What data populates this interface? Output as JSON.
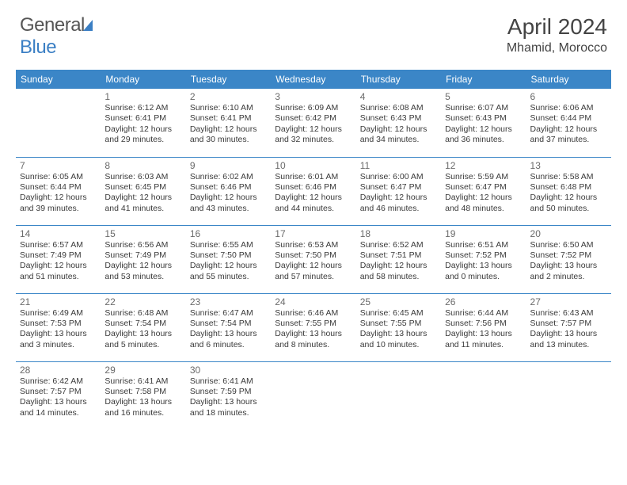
{
  "brand": {
    "part1": "General",
    "part2": "Blue"
  },
  "title": "April 2024",
  "location": "Mhamid, Morocco",
  "colors": {
    "header_bg": "#3b86c7",
    "header_text": "#ffffff",
    "body_text": "#3a3a3a",
    "daynum_text": "#6a6a6a",
    "border": "#3b86c7",
    "logo_gray": "#555555",
    "logo_blue": "#3b7fc4"
  },
  "day_headers": [
    "Sunday",
    "Monday",
    "Tuesday",
    "Wednesday",
    "Thursday",
    "Friday",
    "Saturday"
  ],
  "weeks": [
    [
      null,
      {
        "n": "1",
        "sunrise": "6:12 AM",
        "sunset": "6:41 PM",
        "daylight": "12 hours and 29 minutes."
      },
      {
        "n": "2",
        "sunrise": "6:10 AM",
        "sunset": "6:41 PM",
        "daylight": "12 hours and 30 minutes."
      },
      {
        "n": "3",
        "sunrise": "6:09 AM",
        "sunset": "6:42 PM",
        "daylight": "12 hours and 32 minutes."
      },
      {
        "n": "4",
        "sunrise": "6:08 AM",
        "sunset": "6:43 PM",
        "daylight": "12 hours and 34 minutes."
      },
      {
        "n": "5",
        "sunrise": "6:07 AM",
        "sunset": "6:43 PM",
        "daylight": "12 hours and 36 minutes."
      },
      {
        "n": "6",
        "sunrise": "6:06 AM",
        "sunset": "6:44 PM",
        "daylight": "12 hours and 37 minutes."
      }
    ],
    [
      {
        "n": "7",
        "sunrise": "6:05 AM",
        "sunset": "6:44 PM",
        "daylight": "12 hours and 39 minutes."
      },
      {
        "n": "8",
        "sunrise": "6:03 AM",
        "sunset": "6:45 PM",
        "daylight": "12 hours and 41 minutes."
      },
      {
        "n": "9",
        "sunrise": "6:02 AM",
        "sunset": "6:46 PM",
        "daylight": "12 hours and 43 minutes."
      },
      {
        "n": "10",
        "sunrise": "6:01 AM",
        "sunset": "6:46 PM",
        "daylight": "12 hours and 44 minutes."
      },
      {
        "n": "11",
        "sunrise": "6:00 AM",
        "sunset": "6:47 PM",
        "daylight": "12 hours and 46 minutes."
      },
      {
        "n": "12",
        "sunrise": "5:59 AM",
        "sunset": "6:47 PM",
        "daylight": "12 hours and 48 minutes."
      },
      {
        "n": "13",
        "sunrise": "5:58 AM",
        "sunset": "6:48 PM",
        "daylight": "12 hours and 50 minutes."
      }
    ],
    [
      {
        "n": "14",
        "sunrise": "6:57 AM",
        "sunset": "7:49 PM",
        "daylight": "12 hours and 51 minutes."
      },
      {
        "n": "15",
        "sunrise": "6:56 AM",
        "sunset": "7:49 PM",
        "daylight": "12 hours and 53 minutes."
      },
      {
        "n": "16",
        "sunrise": "6:55 AM",
        "sunset": "7:50 PM",
        "daylight": "12 hours and 55 minutes."
      },
      {
        "n": "17",
        "sunrise": "6:53 AM",
        "sunset": "7:50 PM",
        "daylight": "12 hours and 57 minutes."
      },
      {
        "n": "18",
        "sunrise": "6:52 AM",
        "sunset": "7:51 PM",
        "daylight": "12 hours and 58 minutes."
      },
      {
        "n": "19",
        "sunrise": "6:51 AM",
        "sunset": "7:52 PM",
        "daylight": "13 hours and 0 minutes."
      },
      {
        "n": "20",
        "sunrise": "6:50 AM",
        "sunset": "7:52 PM",
        "daylight": "13 hours and 2 minutes."
      }
    ],
    [
      {
        "n": "21",
        "sunrise": "6:49 AM",
        "sunset": "7:53 PM",
        "daylight": "13 hours and 3 minutes."
      },
      {
        "n": "22",
        "sunrise": "6:48 AM",
        "sunset": "7:54 PM",
        "daylight": "13 hours and 5 minutes."
      },
      {
        "n": "23",
        "sunrise": "6:47 AM",
        "sunset": "7:54 PM",
        "daylight": "13 hours and 6 minutes."
      },
      {
        "n": "24",
        "sunrise": "6:46 AM",
        "sunset": "7:55 PM",
        "daylight": "13 hours and 8 minutes."
      },
      {
        "n": "25",
        "sunrise": "6:45 AM",
        "sunset": "7:55 PM",
        "daylight": "13 hours and 10 minutes."
      },
      {
        "n": "26",
        "sunrise": "6:44 AM",
        "sunset": "7:56 PM",
        "daylight": "13 hours and 11 minutes."
      },
      {
        "n": "27",
        "sunrise": "6:43 AM",
        "sunset": "7:57 PM",
        "daylight": "13 hours and 13 minutes."
      }
    ],
    [
      {
        "n": "28",
        "sunrise": "6:42 AM",
        "sunset": "7:57 PM",
        "daylight": "13 hours and 14 minutes."
      },
      {
        "n": "29",
        "sunrise": "6:41 AM",
        "sunset": "7:58 PM",
        "daylight": "13 hours and 16 minutes."
      },
      {
        "n": "30",
        "sunrise": "6:41 AM",
        "sunset": "7:59 PM",
        "daylight": "13 hours and 18 minutes."
      },
      null,
      null,
      null,
      null
    ]
  ],
  "labels": {
    "sunrise": "Sunrise:",
    "sunset": "Sunset:",
    "daylight": "Daylight:"
  }
}
